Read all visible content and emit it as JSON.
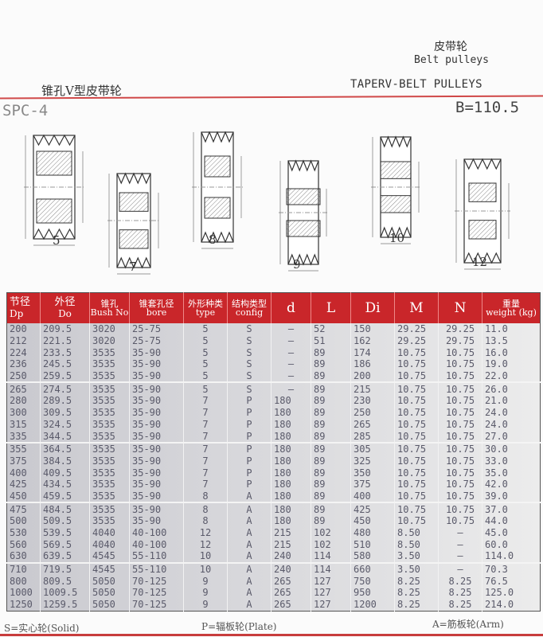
{
  "header": {
    "title_cn_right": "皮带轮",
    "title_en_right": "Belt pulleys",
    "title_cn_left": "锥孔V型皮带轮",
    "title_en_main": "TAPERV-BELT PULLEYS",
    "series": "SPC-4",
    "groove_width": "B=110.5"
  },
  "figures": [
    {
      "label": "5"
    },
    {
      "label": "7"
    },
    {
      "label": "8"
    },
    {
      "label": "9"
    },
    {
      "label": "10"
    },
    {
      "label": "12"
    }
  ],
  "colors": {
    "header_red": "#c9262a",
    "rule_red": "#d04848",
    "body_text": "#5a5a6a"
  },
  "table": {
    "columns": [
      {
        "cn": "节径",
        "en": "Dp"
      },
      {
        "cn": "外径",
        "en": "Do"
      },
      {
        "cn": "锥孔",
        "en": "Bush No"
      },
      {
        "cn": "锥套孔径",
        "en": "bore"
      },
      {
        "cn": "外形种类",
        "en": "type"
      },
      {
        "cn": "结构类型",
        "en": "config"
      },
      {
        "cn": "",
        "en": "d"
      },
      {
        "cn": "",
        "en": "L"
      },
      {
        "cn": "",
        "en": "Di"
      },
      {
        "cn": "",
        "en": "M"
      },
      {
        "cn": "",
        "en": "N"
      },
      {
        "cn": "重量",
        "en": "weight (kg)"
      }
    ],
    "rows": [
      [
        "200",
        "209.5",
        "3020",
        "25-75",
        "5",
        "S",
        "–",
        "52",
        "150",
        "29.25",
        "29.25",
        "11.0"
      ],
      [
        "212",
        "221.5",
        "3020",
        "25-75",
        "5",
        "S",
        "–",
        "51",
        "162",
        "29.25",
        "29.75",
        "13.5"
      ],
      [
        "224",
        "233.5",
        "3535",
        "35-90",
        "5",
        "S",
        "–",
        "89",
        "174",
        "10.75",
        "10.75",
        "16.0"
      ],
      [
        "236",
        "245.5",
        "3535",
        "35-90",
        "5",
        "S",
        "–",
        "89",
        "186",
        "10.75",
        "10.75",
        "19.0"
      ],
      [
        "250",
        "259.5",
        "3535",
        "35-90",
        "5",
        "S",
        "–",
        "89",
        "200",
        "10.75",
        "10.75",
        "22.0"
      ],
      [
        "265",
        "274.5",
        "3535",
        "35-90",
        "5",
        "S",
        "–",
        "89",
        "215",
        "10.75",
        "10.75",
        "26.0"
      ],
      [
        "280",
        "289.5",
        "3535",
        "35-90",
        "7",
        "P",
        "180",
        "89",
        "230",
        "10.75",
        "10.75",
        "21.0"
      ],
      [
        "300",
        "309.5",
        "3535",
        "35-90",
        "7",
        "P",
        "180",
        "89",
        "250",
        "10.75",
        "10.75",
        "24.0"
      ],
      [
        "315",
        "324.5",
        "3535",
        "35-90",
        "7",
        "P",
        "180",
        "89",
        "265",
        "10.75",
        "10.75",
        "24.0"
      ],
      [
        "335",
        "344.5",
        "3535",
        "35-90",
        "7",
        "P",
        "180",
        "89",
        "285",
        "10.75",
        "10.75",
        "27.0"
      ],
      [
        "355",
        "364.5",
        "3535",
        "35-90",
        "7",
        "P",
        "180",
        "89",
        "305",
        "10.75",
        "10.75",
        "30.0"
      ],
      [
        "375",
        "384.5",
        "3535",
        "35-90",
        "7",
        "P",
        "180",
        "89",
        "325",
        "10.75",
        "10.75",
        "33.0"
      ],
      [
        "400",
        "409.5",
        "3535",
        "35-90",
        "7",
        "P",
        "180",
        "89",
        "350",
        "10.75",
        "10.75",
        "35.0"
      ],
      [
        "425",
        "434.5",
        "3535",
        "35-90",
        "7",
        "P",
        "180",
        "89",
        "375",
        "10.75",
        "10.75",
        "42.0"
      ],
      [
        "450",
        "459.5",
        "3535",
        "35-90",
        "8",
        "A",
        "180",
        "89",
        "400",
        "10.75",
        "10.75",
        "39.0"
      ],
      [
        "475",
        "484.5",
        "3535",
        "35-90",
        "8",
        "A",
        "180",
        "89",
        "425",
        "10.75",
        "10.75",
        "37.0"
      ],
      [
        "500",
        "509.5",
        "3535",
        "35-90",
        "8",
        "A",
        "180",
        "89",
        "450",
        "10.75",
        "10.75",
        "44.0"
      ],
      [
        "530",
        "539.5",
        "4040",
        "40-100",
        "12",
        "A",
        "215",
        "102",
        "480",
        "8.50",
        "–",
        "45.0"
      ],
      [
        "560",
        "569.5",
        "4040",
        "40-100",
        "12",
        "A",
        "215",
        "102",
        "510",
        "8.50",
        "–",
        "60.0"
      ],
      [
        "630",
        "639.5",
        "4545",
        "55-110",
        "10",
        "A",
        "240",
        "114",
        "580",
        "3.50",
        "–",
        "114.0"
      ],
      [
        "710",
        "719.5",
        "4545",
        "55-110",
        "10",
        "A",
        "240",
        "114",
        "660",
        "3.50",
        "–",
        "70.3"
      ],
      [
        "800",
        "809.5",
        "5050",
        "70-125",
        "9",
        "A",
        "265",
        "127",
        "750",
        "8.25",
        "8.25",
        "76.5"
      ],
      [
        "1000",
        "1009.5",
        "5050",
        "70-125",
        "9",
        "A",
        "265",
        "127",
        "950",
        "8.25",
        "8.25",
        "125.0"
      ],
      [
        "1250",
        "1259.5",
        "5050",
        "70-125",
        "9",
        "A",
        "265",
        "127",
        "1200",
        "8.25",
        "8.25",
        "214.0"
      ]
    ]
  },
  "legend": {
    "solid": "S=实心轮(Solid)",
    "plate": "P=辐板轮(Plate)",
    "arm": "A=筋板轮(Arm)"
  }
}
